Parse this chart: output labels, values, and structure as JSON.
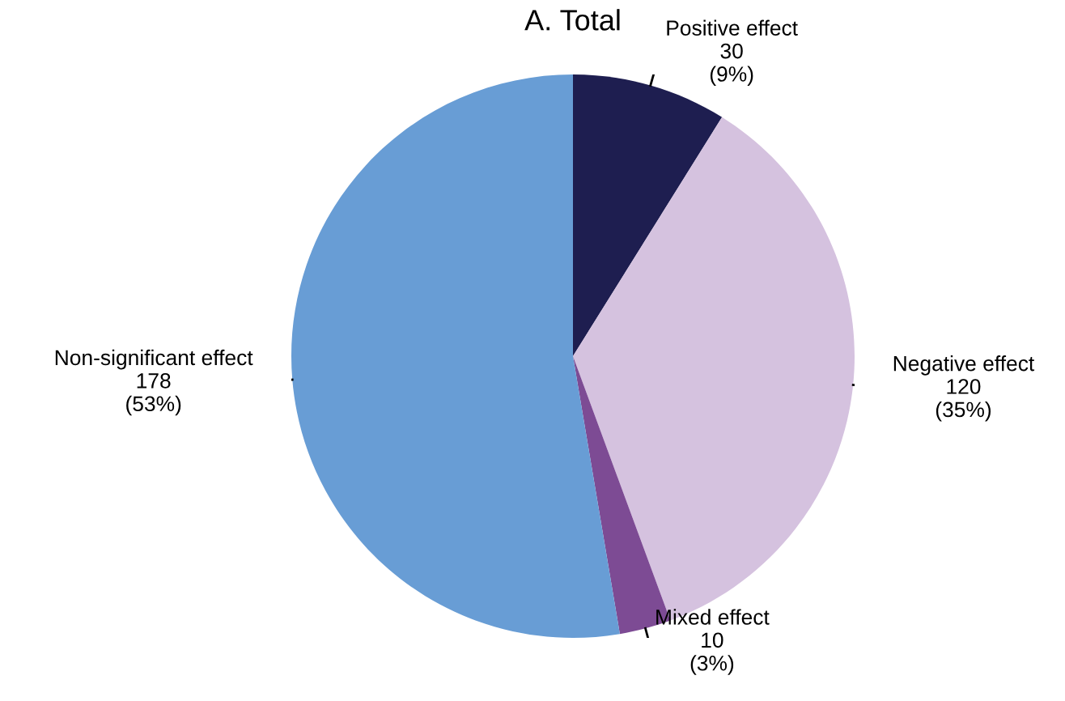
{
  "chart_data": {
    "type": "pie",
    "title": "A. Total",
    "categories": [
      "Positive effect",
      "Negative effect",
      "Mixed effect",
      "Non-significant effect"
    ],
    "values": [
      30,
      120,
      10,
      178
    ],
    "colors": [
      "#1e1e50",
      "#d5c2df",
      "#7d4b94",
      "#689dd5"
    ],
    "value_labels": [
      "30\n(9%)",
      "120\n(35%)",
      "10\n(3%)",
      "178\n(53%)"
    ]
  }
}
